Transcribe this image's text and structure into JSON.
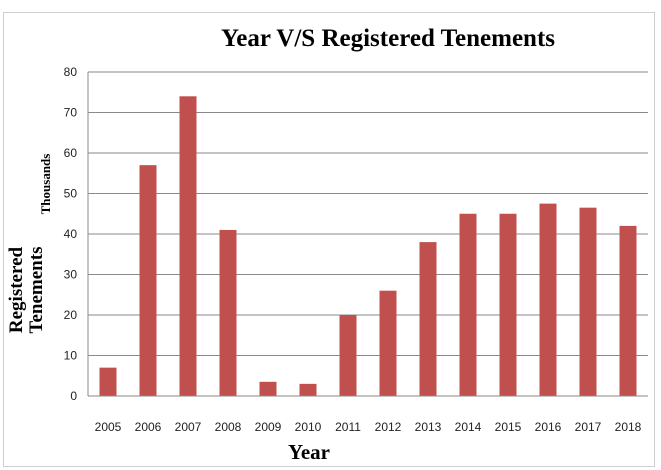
{
  "chart_data": {
    "type": "bar",
    "title": "Year V/S Registered Tenements",
    "xlabel": "Year",
    "ylabel": "Registered Tenements",
    "y_unit_label": "Thousands",
    "categories": [
      "2005",
      "2006",
      "2007",
      "2008",
      "2009",
      "2010",
      "2011",
      "2012",
      "2013",
      "2014",
      "2015",
      "2016",
      "2017",
      "2018"
    ],
    "values": [
      7,
      57,
      74,
      41,
      3.5,
      3,
      20,
      26,
      38,
      45,
      45,
      47.5,
      46.5,
      42
    ],
    "ylim": [
      0,
      80
    ],
    "yticks": [
      "0",
      "10",
      "20",
      "30",
      "40",
      "50",
      "60",
      "70",
      "80"
    ],
    "grid": true,
    "bar_color": "#c0504d",
    "grid_color": "#8a8a8a"
  }
}
